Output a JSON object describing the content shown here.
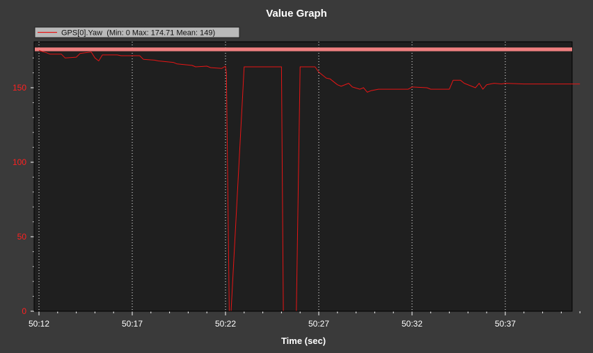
{
  "chart_data": {
    "type": "line",
    "title": "Value Graph",
    "xlabel": "Time (sec)",
    "ylabel": "",
    "xlim": [
      "50:12",
      "50:41"
    ],
    "ylim": [
      0,
      177
    ],
    "x_ticks": [
      "50:12",
      "50:17",
      "50:22",
      "50:27",
      "50:32",
      "50:37"
    ],
    "y_ticks": [
      0,
      50,
      100,
      150
    ],
    "grid": "vertical dotted at major x ticks",
    "legend": {
      "position": "top-left",
      "entries": [
        {
          "label": "GPS[0].Yaw  (Min: 0 Max: 174.71 Mean: 149)",
          "color": "#e81515"
        }
      ]
    },
    "band": {
      "y_from": 174.5,
      "y_to": 177,
      "color": "#f08080"
    },
    "series": [
      {
        "name": "GPS[0].Yaw",
        "color": "#e81515",
        "x": [
          "50:12.0",
          "50:12.4",
          "50:12.6",
          "50:13.2",
          "50:13.4",
          "50:14.0",
          "50:14.2",
          "50:14.8",
          "50:15.0",
          "50:15.2",
          "50:15.4",
          "50:16.2",
          "50:16.4",
          "50:17.4",
          "50:17.6",
          "50:18.2",
          "50:18.4",
          "50:19.2",
          "50:19.4",
          "50:20.2",
          "50:20.4",
          "50:21.0",
          "50:21.2",
          "50:21.8",
          "50:22.0",
          "50:22.05",
          "50:22.2",
          "50:22.3",
          "50:23.0",
          "50:23.2",
          "50:25.0",
          "50:25.1",
          "50:25.8",
          "50:26.0",
          "50:26.8",
          "50:27.0",
          "50:27.4",
          "50:27.6",
          "50:28.0",
          "50:28.2",
          "50:28.6",
          "50:28.8",
          "50:29.2",
          "50:29.4",
          "50:29.6",
          "50:29.8",
          "50:30.2",
          "50:30.4",
          "50:31.8",
          "50:32.0",
          "50:32.8",
          "50:33.0",
          "50:34.0",
          "50:34.2",
          "50:34.6",
          "50:34.8",
          "50:35.4",
          "50:35.6",
          "50:35.8",
          "50:36.0",
          "50:36.2",
          "50:36.4",
          "50:36.8",
          "50:37.0",
          "50:38.0",
          "50:41.0"
        ],
        "values": [
          175.0,
          173.5,
          172.5,
          172.5,
          170.0,
          170.5,
          173.0,
          174.0,
          170.0,
          168.0,
          172.0,
          172.0,
          171.5,
          171.5,
          169.0,
          168.5,
          168.0,
          167.0,
          166.0,
          165.0,
          164.0,
          164.5,
          163.5,
          163.0,
          164.5,
          160.0,
          0.0,
          0.0,
          164.0,
          164.0,
          164.0,
          0.0,
          0.0,
          164.0,
          164.0,
          160.5,
          156.5,
          156.0,
          152.0,
          151.0,
          153.0,
          150.5,
          149.0,
          150.0,
          147.0,
          148.0,
          149.0,
          149.0,
          149.0,
          150.5,
          150.0,
          149.0,
          149.0,
          155.0,
          155.0,
          153.0,
          150.0,
          153.0,
          149.0,
          152.0,
          152.5,
          153.0,
          152.5,
          153.0,
          152.5,
          152.5
        ]
      }
    ]
  }
}
